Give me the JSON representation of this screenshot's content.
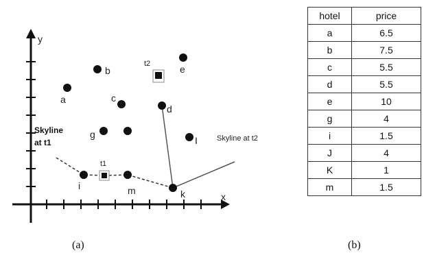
{
  "axes": {
    "x_label": "x",
    "y_label": "y"
  },
  "points": [
    {
      "label": "a",
      "shape": "circle"
    },
    {
      "label": "b",
      "shape": "circle"
    },
    {
      "label": "c",
      "shape": "circle"
    },
    {
      "label": "d",
      "shape": "circle"
    },
    {
      "label": "e",
      "shape": "circle"
    },
    {
      "label": "g",
      "shape": "circle"
    },
    {
      "label": "I",
      "shape": "circle"
    },
    {
      "label": "i",
      "shape": "circle"
    },
    {
      "label": "m",
      "shape": "circle"
    },
    {
      "label": "k",
      "shape": "circle"
    },
    {
      "label": "t1",
      "shape": "square"
    },
    {
      "label": "t2",
      "shape": "square"
    }
  ],
  "annotations": {
    "skyline_t1_line1": "Skyline",
    "skyline_t1_line2": "at t1",
    "skyline_t2": "Skyline at t2"
  },
  "captions": {
    "left": "(a)",
    "right": "(b)"
  },
  "table": {
    "headers": [
      "hotel",
      "price"
    ],
    "rows": [
      [
        "a",
        "6.5"
      ],
      [
        "b",
        "7.5"
      ],
      [
        "c",
        "5.5"
      ],
      [
        "d",
        "5.5"
      ],
      [
        "e",
        "10"
      ],
      [
        "g",
        "4"
      ],
      [
        "i",
        "1.5"
      ],
      [
        "J",
        "4"
      ],
      [
        "K",
        "1"
      ],
      [
        "m",
        "1.5"
      ]
    ]
  },
  "colors": {
    "ink": "#111111",
    "line": "#555555"
  }
}
